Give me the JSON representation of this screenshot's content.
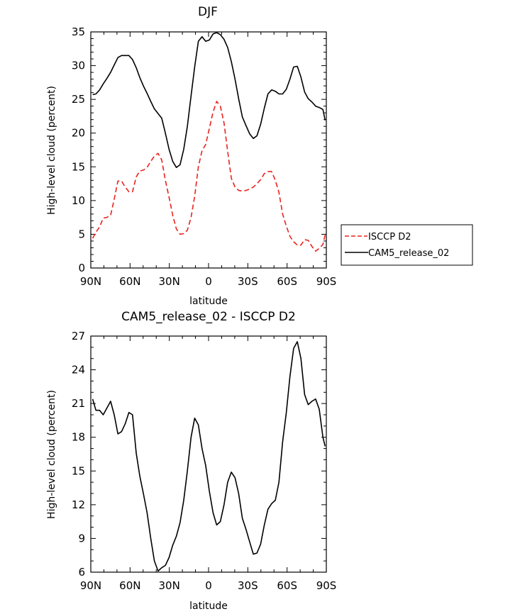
{
  "chart_data": [
    {
      "type": "line",
      "title": "DJF",
      "xlabel": "latitude",
      "ylabel": "High-level cloud (percent)",
      "xlim": [
        -90,
        90
      ],
      "ylim": [
        0,
        35
      ],
      "xticks": [
        "90N",
        "60N",
        "30N",
        "0",
        "30S",
        "60S",
        "90S"
      ],
      "yticks": [
        "0",
        "5",
        "10",
        "15",
        "20",
        "25",
        "30",
        "35"
      ],
      "x": [
        -88.6,
        -86.1,
        -83.3,
        -80.5,
        -77.7,
        -74.9,
        -72.1,
        -69.3,
        -66.5,
        -63.7,
        -60.9,
        -58.1,
        -55.3,
        -52.5,
        -49.8,
        -47.0,
        -44.2,
        -41.4,
        -38.6,
        -35.8,
        -33.0,
        -30.2,
        -27.4,
        -24.6,
        -21.8,
        -19.0,
        -16.2,
        -13.4,
        -10.6,
        -7.8,
        -5.0,
        -2.2,
        0.6,
        3.4,
        6.2,
        9.0,
        11.8,
        14.6,
        17.4,
        20.2,
        23.0,
        25.8,
        28.6,
        31.4,
        34.2,
        37.0,
        39.8,
        42.6,
        45.4,
        48.2,
        51.0,
        53.8,
        56.6,
        59.4,
        62.2,
        65.0,
        67.8,
        70.6,
        73.4,
        76.2,
        79.0,
        81.8,
        84.6,
        87.4,
        89.1
      ],
      "series": [
        {
          "name": "ISCCP D2",
          "color": "#e8231f",
          "dash": "dashed",
          "values": [
            4.4,
            5.3,
            6.1,
            7.4,
            7.5,
            7.8,
            10.2,
            12.9,
            12.9,
            12.0,
            11.3,
            11.3,
            13.5,
            14.4,
            14.5,
            14.9,
            15.8,
            16.6,
            17.0,
            16.0,
            13.0,
            10.5,
            7.8,
            5.8,
            5.0,
            5.1,
            5.6,
            7.5,
            10.6,
            15.0,
            17.4,
            18.3,
            20.7,
            23.1,
            24.7,
            24.0,
            21.5,
            17.3,
            13.3,
            12.0,
            11.5,
            11.4,
            11.5,
            11.7,
            12.0,
            12.5,
            13.1,
            14.0,
            14.3,
            14.3,
            13.0,
            11.2,
            8.0,
            6.2,
            4.7,
            3.9,
            3.4,
            3.4,
            4.2,
            4.1,
            3.2,
            2.5,
            2.9,
            3.5,
            4.9
          ]
        },
        {
          "name": "CAM5_release_02",
          "color": "#000000",
          "dash": "solid",
          "values": [
            25.7,
            25.8,
            26.4,
            27.3,
            28.1,
            29.0,
            30.1,
            31.2,
            31.5,
            31.5,
            31.5,
            30.9,
            29.7,
            28.2,
            27.0,
            25.9,
            24.7,
            23.6,
            22.9,
            22.2,
            20.0,
            17.6,
            15.8,
            14.9,
            15.3,
            17.6,
            21.0,
            25.5,
            29.8,
            33.6,
            34.3,
            33.6,
            33.8,
            34.7,
            34.9,
            34.6,
            33.9,
            32.7,
            30.6,
            28.0,
            25.1,
            22.4,
            21.1,
            19.9,
            19.2,
            19.6,
            21.3,
            23.7,
            25.8,
            26.4,
            26.2,
            25.8,
            25.8,
            26.5,
            28.0,
            29.8,
            29.9,
            28.3,
            26.1,
            25.1,
            24.6,
            24.0,
            23.8,
            23.5,
            21.9
          ]
        }
      ],
      "legend": "right"
    },
    {
      "type": "line",
      "title": "CAM5_release_02 - ISCCP D2",
      "xlabel": "latitude",
      "ylabel": "High-level cloud (percent)",
      "xlim": [
        -90,
        90
      ],
      "ylim": [
        6,
        27
      ],
      "xticks": [
        "90N",
        "60N",
        "30N",
        "0",
        "30S",
        "60S",
        "90S"
      ],
      "yticks": [
        "6",
        "9",
        "12",
        "15",
        "18",
        "21",
        "24",
        "27"
      ],
      "x": [
        -88.6,
        -86.1,
        -83.3,
        -80.5,
        -77.7,
        -74.9,
        -72.1,
        -69.3,
        -66.5,
        -63.7,
        -60.9,
        -58.1,
        -55.3,
        -52.5,
        -49.8,
        -47.0,
        -44.2,
        -41.4,
        -38.6,
        -35.8,
        -33.0,
        -30.2,
        -27.4,
        -24.6,
        -21.8,
        -19.0,
        -16.2,
        -13.4,
        -10.6,
        -7.8,
        -5.0,
        -2.2,
        0.6,
        3.4,
        6.2,
        9.0,
        11.8,
        14.6,
        17.4,
        20.2,
        23.0,
        25.8,
        28.6,
        31.4,
        34.2,
        37.0,
        39.8,
        42.6,
        45.4,
        48.2,
        51.0,
        53.8,
        56.6,
        59.4,
        62.2,
        65.0,
        67.8,
        70.6,
        73.4,
        76.2,
        79.0,
        81.8,
        84.6,
        87.4,
        89.1
      ],
      "series": [
        {
          "color": "#000000",
          "dash": "solid",
          "values": [
            21.4,
            20.4,
            20.4,
            20.0,
            20.6,
            21.2,
            20.0,
            18.3,
            18.5,
            19.2,
            20.2,
            20.0,
            16.6,
            14.5,
            13.0,
            11.3,
            9.0,
            7.0,
            6.1,
            6.4,
            6.6,
            7.3,
            8.4,
            9.2,
            10.4,
            12.4,
            15.0,
            18.0,
            19.7,
            19.1,
            17.0,
            15.5,
            13.2,
            11.3,
            10.2,
            10.5,
            12.0,
            14.0,
            14.9,
            14.4,
            13.0,
            10.8,
            9.8,
            8.7,
            7.6,
            7.7,
            8.5,
            10.2,
            11.6,
            12.1,
            12.4,
            14.0,
            17.6,
            20.2,
            23.4,
            25.9,
            26.5,
            25.0,
            21.8,
            20.9,
            21.2,
            21.4,
            20.5,
            18.0,
            17.2
          ]
        }
      ]
    }
  ]
}
